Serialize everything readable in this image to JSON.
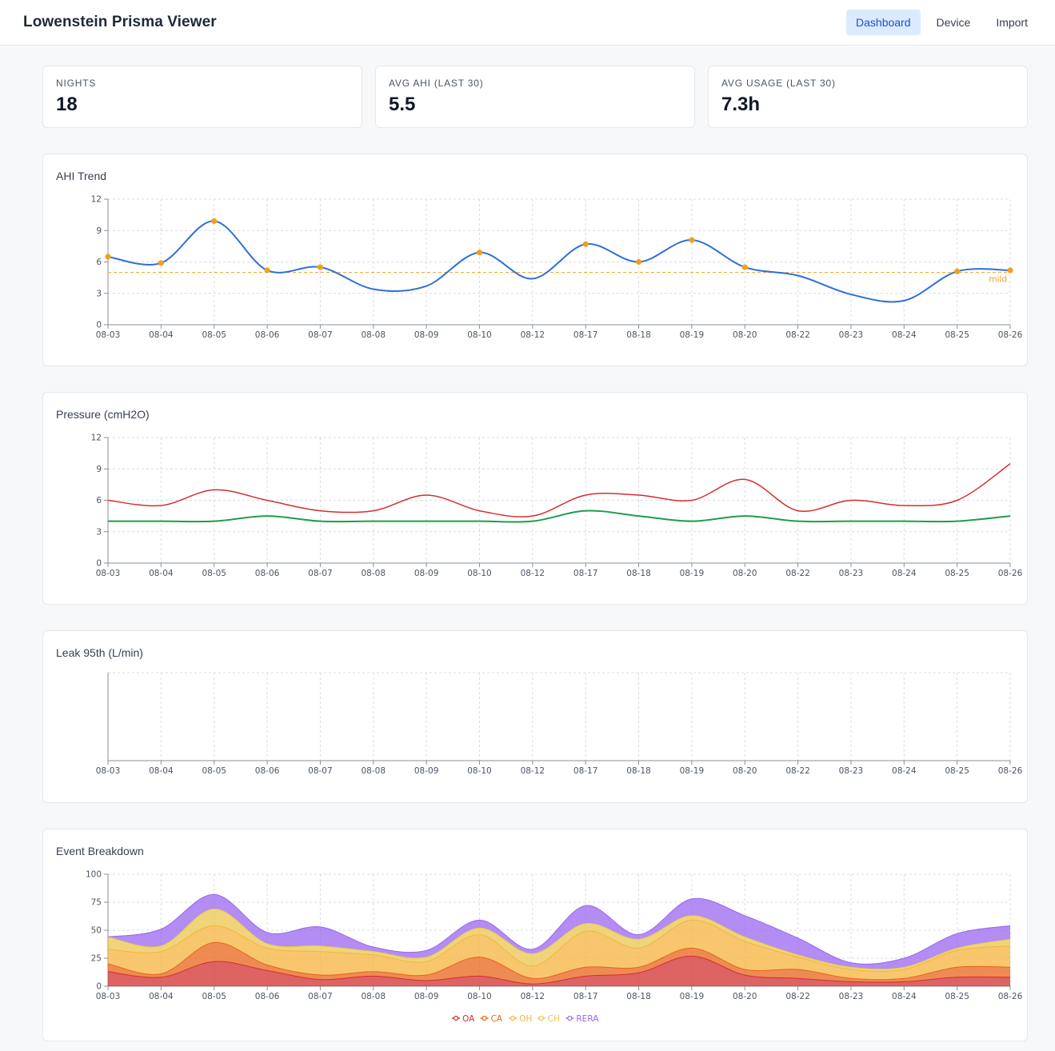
{
  "app": {
    "title": "Lowenstein Prisma Viewer",
    "nav": [
      {
        "label": "Dashboard",
        "active": true
      },
      {
        "label": "Device",
        "active": false
      },
      {
        "label": "Import",
        "active": false
      }
    ]
  },
  "stats": [
    {
      "label": "NIGHTS",
      "value": "18"
    },
    {
      "label": "AVG AHI (LAST 30)",
      "value": "5.5"
    },
    {
      "label": "AVG USAGE (LAST 30)",
      "value": "7.3h"
    }
  ],
  "charts": {
    "ahi": {
      "title": "AHI Trend"
    },
    "pressure": {
      "title": "Pressure (cmH2O)"
    },
    "leak": {
      "title": "Leak 95th (L/min)"
    },
    "events": {
      "title": "Event Breakdown"
    }
  },
  "chart_data": [
    {
      "id": "ahi",
      "type": "line",
      "title": "AHI Trend",
      "categories": [
        "08-03",
        "08-04",
        "08-05",
        "08-06",
        "08-07",
        "08-08",
        "08-09",
        "08-10",
        "08-12",
        "08-17",
        "08-18",
        "08-19",
        "08-20",
        "08-22",
        "08-23",
        "08-24",
        "08-25",
        "08-26"
      ],
      "series": [
        {
          "values": [
            6.5,
            5.9,
            9.9,
            5.2,
            5.5,
            3.4,
            3.7,
            6.9,
            4.4,
            7.7,
            6.0,
            8.1,
            5.5,
            4.7,
            2.9,
            2.3,
            5.1,
            5.2
          ],
          "color": "#2f6fd6"
        }
      ],
      "markers": [
        true,
        true,
        true,
        true,
        true,
        false,
        false,
        true,
        false,
        true,
        true,
        true,
        true,
        false,
        false,
        false,
        true,
        true
      ],
      "marker_color": "#f0a020",
      "reference_line": {
        "value": 5,
        "label": "mild",
        "color": "#f0a020"
      },
      "yticks": [
        0,
        3,
        6,
        9,
        12
      ],
      "ylim": [
        0,
        12
      ],
      "grid": true
    },
    {
      "id": "pressure",
      "type": "line",
      "title": "Pressure (cmH2O)",
      "categories": [
        "08-03",
        "08-04",
        "08-05",
        "08-06",
        "08-07",
        "08-08",
        "08-09",
        "08-10",
        "08-12",
        "08-17",
        "08-18",
        "08-19",
        "08-20",
        "08-22",
        "08-23",
        "08-24",
        "08-25",
        "08-26"
      ],
      "series": [
        {
          "values": [
            6.0,
            5.5,
            7.0,
            6.0,
            5.0,
            5.0,
            6.5,
            5.0,
            4.5,
            6.5,
            6.5,
            6.0,
            8.0,
            5.0,
            6.0,
            5.5,
            6.0,
            9.5
          ],
          "color": "#d32f2f"
        },
        {
          "values": [
            4.0,
            4.0,
            4.0,
            4.5,
            4.0,
            4.0,
            4.0,
            4.0,
            4.0,
            5.0,
            4.5,
            4.0,
            4.5,
            4.0,
            4.0,
            4.0,
            4.0,
            4.5
          ],
          "color": "#1e9e4a"
        }
      ],
      "yticks": [
        0,
        3,
        6,
        9,
        12
      ],
      "ylim": [
        0,
        12
      ],
      "grid": true
    },
    {
      "id": "leak",
      "type": "line",
      "title": "Leak 95th (L/min)",
      "categories": [
        "08-03",
        "08-04",
        "08-05",
        "08-06",
        "08-07",
        "08-08",
        "08-09",
        "08-10",
        "08-12",
        "08-17",
        "08-18",
        "08-19",
        "08-20",
        "08-22",
        "08-23",
        "08-24",
        "08-25",
        "08-26"
      ],
      "series": [],
      "yticks": [],
      "grid": true
    },
    {
      "id": "events",
      "type": "area",
      "stacked": true,
      "title": "Event Breakdown",
      "categories": [
        "08-03",
        "08-04",
        "08-05",
        "08-06",
        "08-07",
        "08-08",
        "08-09",
        "08-10",
        "08-12",
        "08-17",
        "08-18",
        "08-19",
        "08-20",
        "08-22",
        "08-23",
        "08-24",
        "08-25",
        "08-26"
      ],
      "series": [
        {
          "name": "OA",
          "values": [
            13,
            8,
            22,
            14,
            6,
            9,
            5,
            9,
            2,
            9,
            12,
            27,
            10,
            7,
            4,
            4,
            8,
            8
          ],
          "color": "#d32f2f"
        },
        {
          "name": "CA",
          "values": [
            7,
            3,
            17,
            5,
            4,
            4,
            5,
            17,
            5,
            8,
            5,
            7,
            5,
            8,
            3,
            3,
            9,
            9
          ],
          "color": "#e8641a"
        },
        {
          "name": "OH",
          "values": [
            13,
            20,
            15,
            15,
            21,
            15,
            12,
            20,
            11,
            32,
            17,
            25,
            25,
            11,
            8,
            8,
            15,
            19
          ],
          "color": "#f5b43c"
        },
        {
          "name": "CH",
          "values": [
            11,
            5,
            15,
            4,
            5,
            3,
            4,
            6,
            11,
            7,
            8,
            4,
            4,
            2,
            2,
            2,
            2,
            6
          ],
          "color": "#eac54c"
        },
        {
          "name": "RERA",
          "values": [
            0,
            15,
            13,
            10,
            17,
            4,
            6,
            7,
            4,
            16,
            4,
            15,
            19,
            15,
            4,
            8,
            13,
            12
          ],
          "color": "#9966f0"
        }
      ],
      "yticks": [
        0,
        25,
        50,
        75,
        100
      ],
      "ylim": [
        0,
        100
      ],
      "legend": "bottom",
      "grid": true
    }
  ]
}
